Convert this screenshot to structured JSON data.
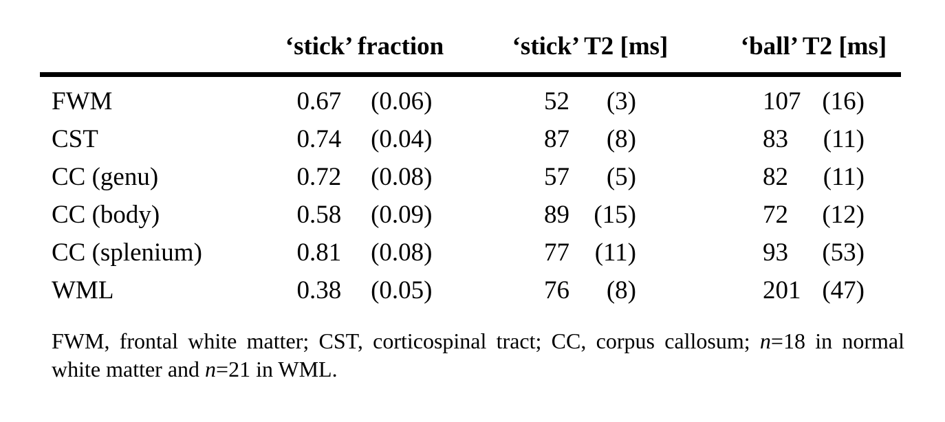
{
  "page": {
    "background_color": "#ffffff",
    "text_color": "#000000",
    "rule_color": "#000000"
  },
  "table": {
    "columns": [
      "",
      "‘stick’ fraction",
      "‘stick’ T2 [ms]",
      "‘ball’ T2 [ms]"
    ],
    "rows": [
      {
        "label": "FWM",
        "fraction": "0.67",
        "fraction_sd": "(0.06)",
        "stick_t2": "52",
        "stick_t2_sd": "(3)",
        "ball_t2": "107",
        "ball_t2_sd": "(16)"
      },
      {
        "label": "CST",
        "fraction": "0.74",
        "fraction_sd": "(0.04)",
        "stick_t2": "87",
        "stick_t2_sd": "(8)",
        "ball_t2": "83",
        "ball_t2_sd": "(11)"
      },
      {
        "label": "CC (genu)",
        "fraction": "0.72",
        "fraction_sd": "(0.08)",
        "stick_t2": "57",
        "stick_t2_sd": "(5)",
        "ball_t2": "82",
        "ball_t2_sd": "(11)"
      },
      {
        "label": "CC (body)",
        "fraction": "0.58",
        "fraction_sd": "(0.09)",
        "stick_t2": "89",
        "stick_t2_sd": "(15)",
        "ball_t2": "72",
        "ball_t2_sd": "(12)"
      },
      {
        "label": "CC (splenium)",
        "fraction": "0.81",
        "fraction_sd": "(0.08)",
        "stick_t2": "77",
        "stick_t2_sd": "(11)",
        "ball_t2": "93",
        "ball_t2_sd": "(53)"
      },
      {
        "label": "WML",
        "fraction": "0.38",
        "fraction_sd": "(0.05)",
        "stick_t2": "76",
        "stick_t2_sd": "(8)",
        "ball_t2": "201",
        "ball_t2_sd": "(47)"
      }
    ]
  },
  "footnote": {
    "part1": "FWM, frontal white matter; CST, corticospinal tract; CC, corpus callosum; ",
    "n1": "n",
    "part2": "=18 in normal white matter and ",
    "n2": "n",
    "part3": "=21 in WML."
  }
}
